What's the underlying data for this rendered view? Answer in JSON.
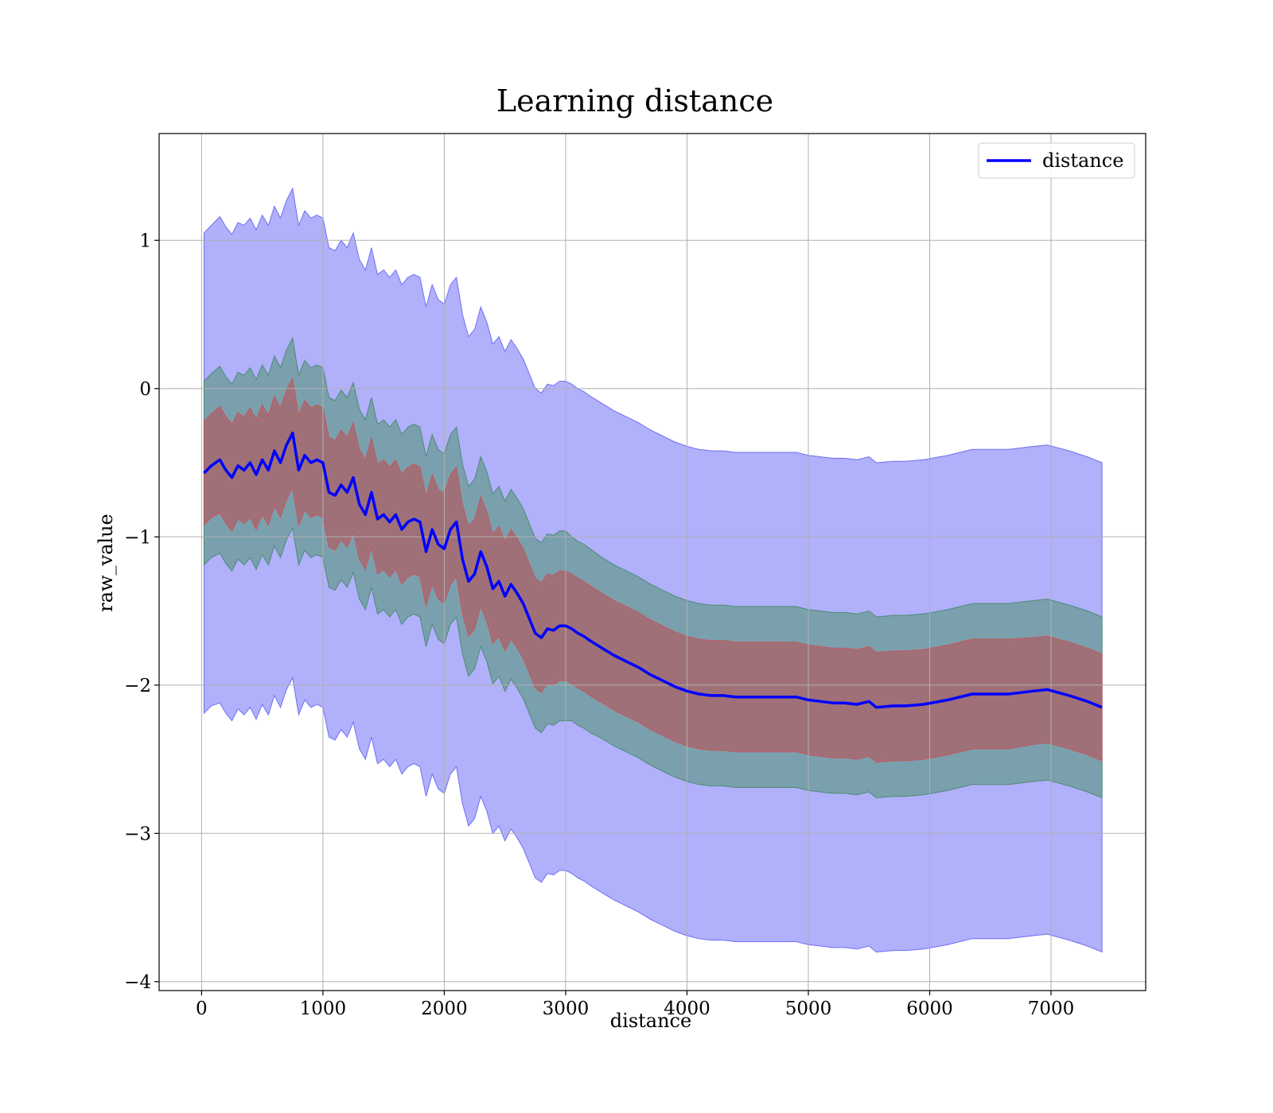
{
  "chart_data": {
    "type": "line",
    "title": "Learning distance",
    "xlabel": "distance",
    "ylabel": "raw_value",
    "xlim": [
      -350,
      7780
    ],
    "ylim": [
      -4.06,
      1.72
    ],
    "x_ticks": [
      0,
      1000,
      2000,
      3000,
      4000,
      5000,
      6000,
      7000
    ],
    "y_ticks": [
      -4,
      -3,
      -2,
      -1,
      0,
      1
    ],
    "x_tick_labels": [
      "0",
      "1000",
      "2000",
      "3000",
      "4000",
      "5000",
      "6000",
      "7000"
    ],
    "y_tick_labels": [
      "−4",
      "−3",
      "−2",
      "−1",
      "0",
      "1"
    ],
    "grid": true,
    "legend_position": "top-right",
    "series": [
      {
        "name": "distance",
        "color": "#0000ff",
        "x": [
          20,
          80,
          150,
          200,
          250,
          300,
          350,
          400,
          450,
          500,
          550,
          600,
          650,
          700,
          750,
          800,
          850,
          900,
          950,
          1000,
          1050,
          1100,
          1150,
          1200,
          1250,
          1300,
          1350,
          1400,
          1450,
          1500,
          1550,
          1600,
          1650,
          1700,
          1750,
          1800,
          1850,
          1900,
          1950,
          2000,
          2050,
          2100,
          2150,
          2200,
          2250,
          2300,
          2350,
          2400,
          2450,
          2500,
          2550,
          2600,
          2650,
          2700,
          2750,
          2800,
          2850,
          2900,
          2950,
          3000,
          3050,
          3100,
          3150,
          3200,
          3300,
          3400,
          3500,
          3600,
          3700,
          3800,
          3900,
          4000,
          4100,
          4200,
          4300,
          4400,
          4500,
          4600,
          4700,
          4800,
          4900,
          5000,
          5100,
          5200,
          5300,
          5400,
          5500,
          5560,
          5700,
          5800,
          5950,
          6150,
          6350,
          6500,
          6650,
          6850,
          6970,
          7150,
          7300,
          7420
        ],
        "y": [
          -0.57,
          -0.52,
          -0.48,
          -0.55,
          -0.6,
          -0.52,
          -0.55,
          -0.5,
          -0.58,
          -0.48,
          -0.55,
          -0.42,
          -0.5,
          -0.38,
          -0.3,
          -0.55,
          -0.45,
          -0.5,
          -0.48,
          -0.5,
          -0.7,
          -0.72,
          -0.65,
          -0.7,
          -0.6,
          -0.78,
          -0.85,
          -0.7,
          -0.88,
          -0.85,
          -0.9,
          -0.85,
          -0.95,
          -0.9,
          -0.88,
          -0.9,
          -1.1,
          -0.95,
          -1.05,
          -1.08,
          -0.95,
          -0.9,
          -1.15,
          -1.3,
          -1.25,
          -1.1,
          -1.2,
          -1.35,
          -1.3,
          -1.4,
          -1.32,
          -1.38,
          -1.45,
          -1.55,
          -1.65,
          -1.68,
          -1.62,
          -1.63,
          -1.6,
          -1.6,
          -1.62,
          -1.65,
          -1.67,
          -1.7,
          -1.75,
          -1.8,
          -1.84,
          -1.88,
          -1.93,
          -1.97,
          -2.01,
          -2.04,
          -2.06,
          -2.07,
          -2.07,
          -2.08,
          -2.08,
          -2.08,
          -2.08,
          -2.08,
          -2.08,
          -2.1,
          -2.11,
          -2.12,
          -2.12,
          -2.13,
          -2.11,
          -2.15,
          -2.14,
          -2.14,
          -2.13,
          -2.1,
          -2.06,
          -2.06,
          -2.06,
          -2.04,
          -2.03,
          -2.07,
          -2.11,
          -2.15
        ],
        "spread_inner": [
          0.35,
          0.35,
          0.36,
          0.36,
          0.36,
          0.36,
          0.36,
          0.37,
          0.37,
          0.37,
          0.37,
          0.37,
          0.37,
          0.37,
          0.37,
          0.37,
          0.37,
          0.37,
          0.37,
          0.37,
          0.37,
          0.37,
          0.37,
          0.37,
          0.37,
          0.37,
          0.37,
          0.37,
          0.37,
          0.37,
          0.37,
          0.37,
          0.37,
          0.37,
          0.37,
          0.37,
          0.37,
          0.37,
          0.37,
          0.37,
          0.37,
          0.37,
          0.37,
          0.37,
          0.37,
          0.37,
          0.37,
          0.37,
          0.37,
          0.37,
          0.37,
          0.37,
          0.37,
          0.37,
          0.37,
          0.37,
          0.37,
          0.37,
          0.37,
          0.37,
          0.37,
          0.37,
          0.37,
          0.37,
          0.37,
          0.37,
          0.37,
          0.37,
          0.37,
          0.37,
          0.37,
          0.37,
          0.37,
          0.37,
          0.37,
          0.37,
          0.37,
          0.37,
          0.37,
          0.37,
          0.37,
          0.37,
          0.37,
          0.37,
          0.37,
          0.37,
          0.37,
          0.37,
          0.37,
          0.37,
          0.37,
          0.37,
          0.37,
          0.37,
          0.37,
          0.36,
          0.36,
          0.36,
          0.36,
          0.36
        ],
        "spread_middle": [
          0.62,
          0.62,
          0.63,
          0.63,
          0.63,
          0.63,
          0.64,
          0.64,
          0.64,
          0.64,
          0.64,
          0.64,
          0.64,
          0.64,
          0.64,
          0.64,
          0.64,
          0.64,
          0.64,
          0.64,
          0.64,
          0.64,
          0.64,
          0.64,
          0.64,
          0.64,
          0.64,
          0.64,
          0.64,
          0.64,
          0.64,
          0.64,
          0.64,
          0.64,
          0.64,
          0.64,
          0.64,
          0.64,
          0.64,
          0.64,
          0.64,
          0.64,
          0.64,
          0.64,
          0.64,
          0.64,
          0.64,
          0.64,
          0.64,
          0.64,
          0.64,
          0.64,
          0.64,
          0.64,
          0.64,
          0.64,
          0.64,
          0.64,
          0.64,
          0.64,
          0.62,
          0.62,
          0.62,
          0.62,
          0.61,
          0.61,
          0.61,
          0.61,
          0.61,
          0.61,
          0.61,
          0.61,
          0.61,
          0.61,
          0.61,
          0.61,
          0.61,
          0.61,
          0.61,
          0.61,
          0.61,
          0.61,
          0.61,
          0.61,
          0.61,
          0.61,
          0.61,
          0.61,
          0.61,
          0.61,
          0.61,
          0.61,
          0.61,
          0.61,
          0.61,
          0.61,
          0.61,
          0.61,
          0.61,
          0.61
        ],
        "spread_outer": [
          1.62,
          1.62,
          1.64,
          1.64,
          1.64,
          1.64,
          1.65,
          1.65,
          1.65,
          1.65,
          1.65,
          1.65,
          1.65,
          1.65,
          1.65,
          1.65,
          1.65,
          1.65,
          1.65,
          1.65,
          1.65,
          1.65,
          1.65,
          1.65,
          1.65,
          1.65,
          1.65,
          1.65,
          1.65,
          1.65,
          1.65,
          1.65,
          1.65,
          1.65,
          1.65,
          1.65,
          1.65,
          1.65,
          1.65,
          1.65,
          1.65,
          1.65,
          1.65,
          1.65,
          1.65,
          1.65,
          1.65,
          1.65,
          1.65,
          1.65,
          1.65,
          1.65,
          1.65,
          1.65,
          1.65,
          1.65,
          1.65,
          1.65,
          1.65,
          1.65,
          1.65,
          1.65,
          1.65,
          1.65,
          1.65,
          1.65,
          1.65,
          1.65,
          1.65,
          1.65,
          1.65,
          1.65,
          1.65,
          1.65,
          1.65,
          1.65,
          1.65,
          1.65,
          1.65,
          1.65,
          1.65,
          1.65,
          1.65,
          1.65,
          1.65,
          1.65,
          1.65,
          1.65,
          1.65,
          1.65,
          1.65,
          1.65,
          1.65,
          1.65,
          1.65,
          1.65,
          1.65,
          1.65,
          1.65,
          1.65
        ]
      }
    ],
    "band_colors": {
      "outer": "#b0b0fb",
      "outer_edge": "#6f6ff5",
      "middle": "#7aa0ae",
      "middle_edge": "#4d8a73",
      "inner": "#a07078",
      "inner_edge": "#c05a60"
    },
    "legend": [
      {
        "label": "distance",
        "color": "#0000ff"
      }
    ]
  }
}
